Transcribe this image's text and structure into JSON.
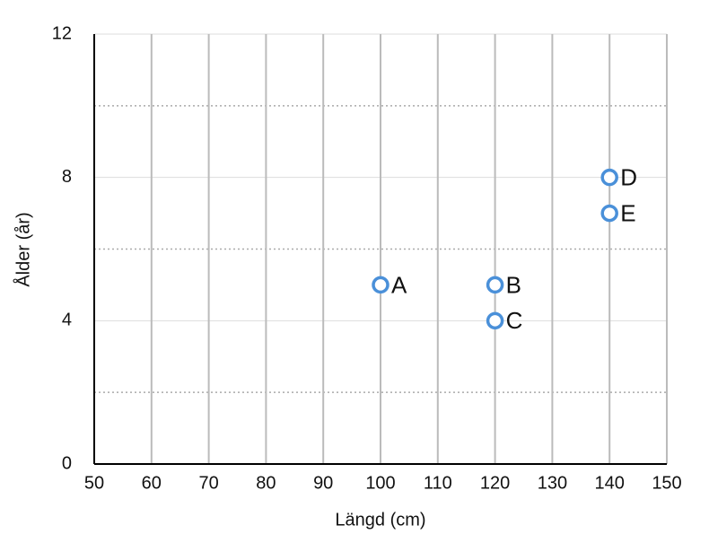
{
  "chart_data": {
    "type": "scatter",
    "x_label": "Längd (cm)",
    "y_label": "Ålder (år)",
    "x": [
      100,
      120,
      120,
      140,
      140
    ],
    "values": [
      5,
      5,
      4,
      8,
      7
    ],
    "labels": [
      "A",
      "B",
      "C",
      "D",
      "E"
    ],
    "color": "#4a90d9",
    "xlim": [
      50,
      150
    ],
    "xticks": [
      50,
      60,
      70,
      80,
      90,
      100,
      110,
      120,
      130,
      140,
      150
    ],
    "ylim": [
      0,
      12
    ],
    "yticks": [
      0,
      4,
      8,
      12
    ],
    "y_minor_grid": [
      2,
      6,
      10
    ],
    "grid": true
  }
}
